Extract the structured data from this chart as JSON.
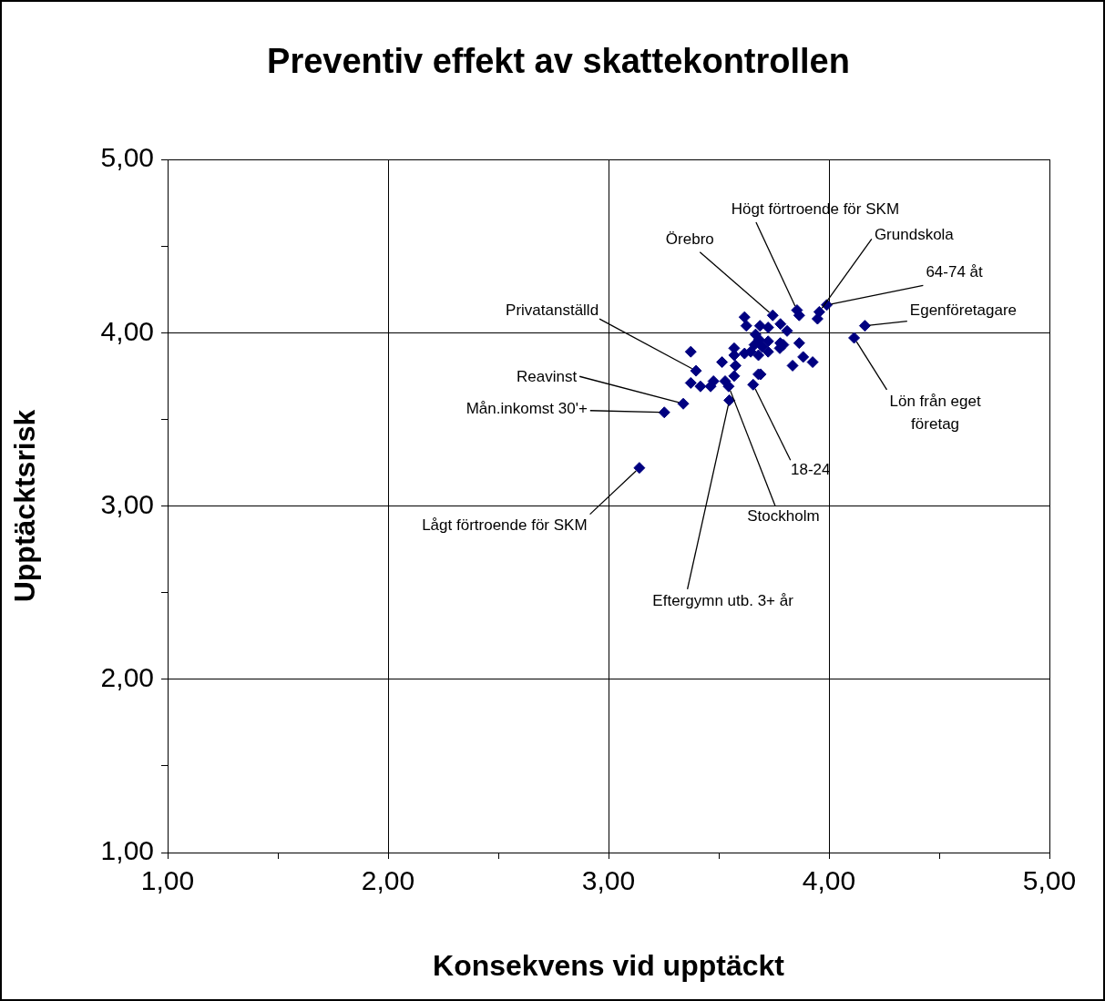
{
  "chart_data": {
    "type": "scatter",
    "title": "Preventiv effekt av skattekontrollen",
    "xlabel": "Konsekvens vid upptäckt",
    "ylabel": "Upptäcktsrisk",
    "xlim": [
      1,
      5
    ],
    "ylim": [
      1,
      5
    ],
    "xticks": [
      {
        "value": 1,
        "label": "1,00"
      },
      {
        "value": 1.5,
        "label": null
      },
      {
        "value": 2,
        "label": "2,00"
      },
      {
        "value": 2.5,
        "label": null
      },
      {
        "value": 3,
        "label": "3,00"
      },
      {
        "value": 3.5,
        "label": null
      },
      {
        "value": 4,
        "label": "4,00"
      },
      {
        "value": 4.5,
        "label": null
      },
      {
        "value": 5,
        "label": "5,00"
      }
    ],
    "yticks": [
      {
        "value": 1,
        "label": "1,00"
      },
      {
        "value": 1.5,
        "label": null
      },
      {
        "value": 2,
        "label": "2,00"
      },
      {
        "value": 2.5,
        "label": null
      },
      {
        "value": 3,
        "label": "3,00"
      },
      {
        "value": 3.5,
        "label": null
      },
      {
        "value": 4,
        "label": "4,00"
      },
      {
        "value": 4.5,
        "label": null
      },
      {
        "value": 5,
        "label": "5,00"
      }
    ],
    "grid": true,
    "marker": "diamond",
    "series": [
      {
        "color": "#000080",
        "x": [
          3.745,
          3.855,
          3.865,
          3.956,
          3.948,
          3.99,
          3.617,
          3.625,
          3.687,
          3.724,
          3.78,
          3.81,
          4.163,
          4.114,
          3.667,
          3.683,
          3.662,
          3.697,
          3.724,
          3.779,
          3.793,
          3.777,
          3.865,
          3.57,
          3.57,
          3.617,
          3.645,
          3.68,
          3.724,
          3.373,
          3.515,
          3.576,
          3.883,
          3.835,
          3.926,
          3.397,
          3.57,
          3.68,
          3.69,
          3.373,
          3.417,
          3.463,
          3.476,
          3.529,
          3.545,
          3.656,
          3.339,
          3.548,
          3.253,
          3.14
        ],
        "values": [
          4.1,
          4.13,
          4.1,
          4.12,
          4.08,
          4.16,
          4.09,
          4.04,
          4.04,
          4.03,
          4.05,
          4.01,
          4.04,
          3.97,
          3.99,
          3.96,
          3.93,
          3.92,
          3.95,
          3.94,
          3.93,
          3.91,
          3.94,
          3.91,
          3.87,
          3.88,
          3.89,
          3.87,
          3.89,
          3.89,
          3.83,
          3.81,
          3.86,
          3.81,
          3.83,
          3.78,
          3.75,
          3.76,
          3.76,
          3.71,
          3.69,
          3.69,
          3.72,
          3.72,
          3.69,
          3.7,
          3.59,
          3.61,
          3.54,
          3.22
        ]
      }
    ],
    "annotations": [
      {
        "text": "Högt förtroende för SKM",
        "x": 3.855,
        "y": 4.13
      },
      {
        "text": "Grundskola",
        "x": 3.956,
        "y": 4.12
      },
      {
        "text": "Örebro",
        "x": 3.745,
        "y": 4.1
      },
      {
        "text": "64-74 åt",
        "x": 3.99,
        "y": 4.16
      },
      {
        "text": "Egenföretagare",
        "x": 4.163,
        "y": 4.04
      },
      {
        "text": "Lön från eget\nföretag",
        "x": 4.114,
        "y": 3.97
      },
      {
        "text": "Privatanställd",
        "x": 3.397,
        "y": 3.78
      },
      {
        "text": "Reavinst",
        "x": 3.339,
        "y": 3.59
      },
      {
        "text": "Mån.inkomst 30'+",
        "x": 3.253,
        "y": 3.54
      },
      {
        "text": "Lågt förtroende för SKM",
        "x": 3.14,
        "y": 3.22
      },
      {
        "text": "Eftergymn utb. 3+ år",
        "x": 3.548,
        "y": 3.61
      },
      {
        "text": "Stockholm",
        "x": 3.545,
        "y": 3.69
      },
      {
        "text": "18-24",
        "x": 3.656,
        "y": 3.7
      }
    ]
  }
}
